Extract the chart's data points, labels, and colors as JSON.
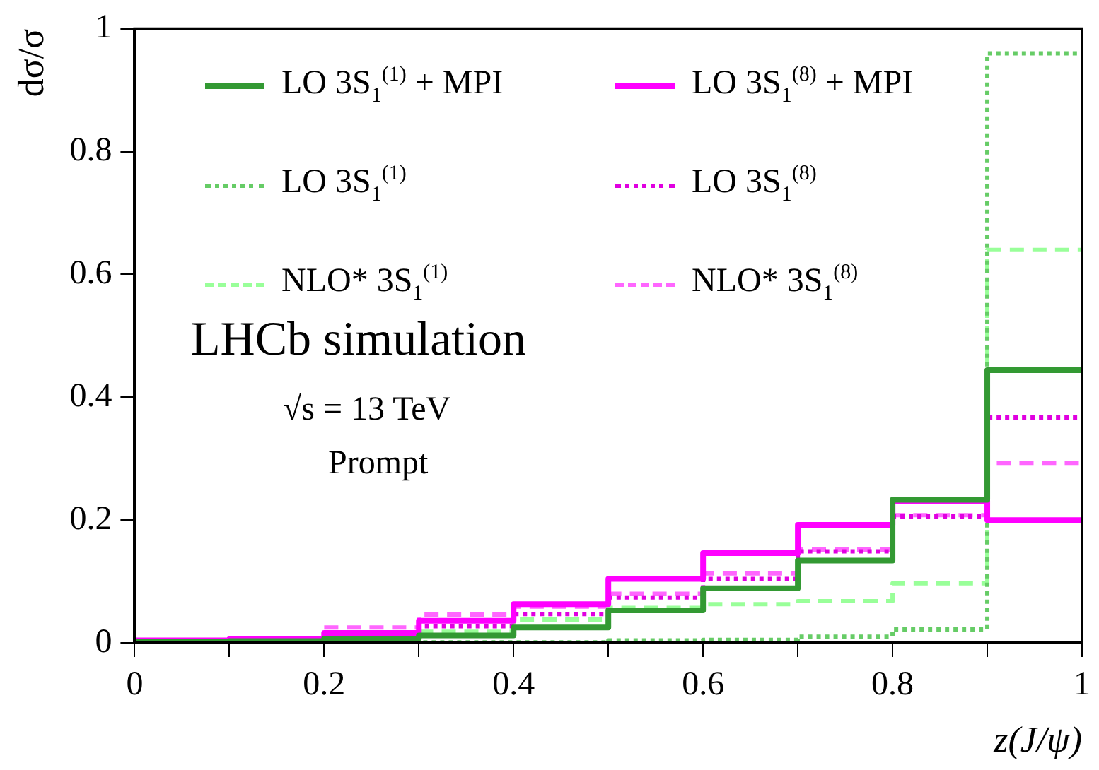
{
  "chart_data": {
    "type": "histogram",
    "xlabel": "z(J/ψ)",
    "ylabel": "dσ/σ",
    "bins": [
      0,
      0.1,
      0.2,
      0.3,
      0.4,
      0.5,
      0.6,
      0.7,
      0.8,
      0.9,
      1
    ],
    "series": [
      {
        "name": "LO 3S$_{1}$$^{(1)}$ + MPI",
        "color": "#339933",
        "line_style": "solid",
        "values": [
          0.002,
          0.003,
          0.007,
          0.012,
          0.025,
          0.053,
          0.089,
          0.134,
          0.233,
          0.444
        ]
      },
      {
        "name": "LO 3S$_{1}$$^{(8)}$ + MPI",
        "color": "#ff00ff",
        "line_style": "solid",
        "values": [
          0.004,
          0.006,
          0.016,
          0.036,
          0.063,
          0.104,
          0.146,
          0.192,
          0.231,
          0.2
        ]
      },
      {
        "name": "LO 3S$_{1}$$^{(1)}$",
        "color": "#66cc66",
        "line_style": "dotted",
        "values": [
          0.001,
          0.001,
          0.001,
          0.001,
          0.001,
          0.004,
          0.005,
          0.01,
          0.022,
          0.96
        ]
      },
      {
        "name": "LO 3S$_{1}$$^{(8)}$",
        "color": "#e000e0",
        "line_style": "dotted",
        "values": [
          0.002,
          0.003,
          0.012,
          0.027,
          0.047,
          0.074,
          0.104,
          0.149,
          0.206,
          0.367
        ]
      },
      {
        "name": "NLO* 3S$_{1}$$^{(1)}$",
        "color": "#99ff99",
        "line_style": "dashed",
        "values": [
          0.002,
          0.003,
          0.01,
          0.018,
          0.038,
          0.057,
          0.063,
          0.068,
          0.097,
          0.64
        ]
      },
      {
        "name": "NLO* 3S$_{1}$$^{(8)}$",
        "color": "#ff66ff",
        "line_style": "dashed",
        "values": [
          0.002,
          0.007,
          0.025,
          0.046,
          0.059,
          0.08,
          0.113,
          0.152,
          0.208,
          0.293
        ]
      }
    ],
    "xlim": [
      0,
      1
    ],
    "xticks": [
      0,
      {
        "value": 0.1,
        "label": null
      },
      0.2,
      {
        "value": 0.3,
        "label": null
      },
      0.4,
      {
        "value": 0.5,
        "label": null
      },
      0.6,
      {
        "value": 0.7,
        "label": null
      },
      0.8,
      {
        "value": 0.9,
        "label": null
      },
      1
    ],
    "ylim": [
      0,
      1
    ],
    "yticks": [
      0,
      0.2,
      0.4,
      0.6,
      0.8,
      1
    ],
    "grid": false,
    "legend": "top",
    "annotations": [
      "LHCb simulation",
      "√s = 13 TeV",
      "Prompt"
    ]
  }
}
